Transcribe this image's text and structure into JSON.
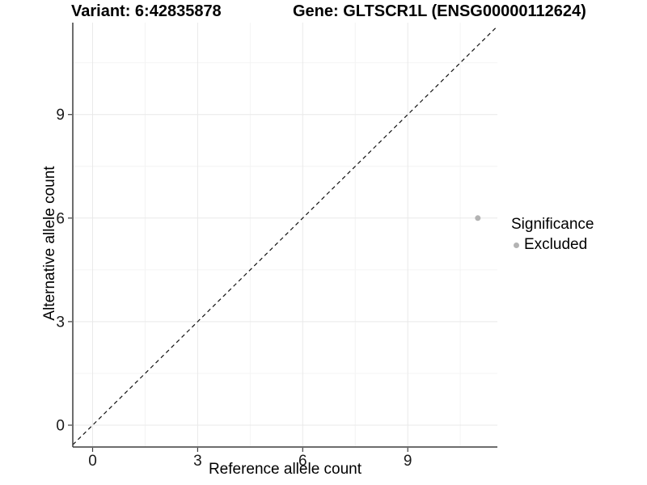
{
  "chart_data": {
    "type": "scatter",
    "title_left": "Variant: 6:42835878",
    "title_right": "Gene: GLTSCR1L (ENSG00000112624)",
    "xlabel": "Reference allele count",
    "ylabel": "Alternative allele count",
    "x_ticks": [
      0,
      3,
      6,
      9
    ],
    "y_ticks": [
      0,
      3,
      6,
      9
    ],
    "x_minor_ticks": [
      1.5,
      4.5,
      7.5,
      10.5
    ],
    "y_minor_ticks": [
      1.5,
      4.5,
      7.5,
      10.5
    ],
    "xlim": [
      -0.57,
      11.56
    ],
    "ylim": [
      -0.63,
      11.66
    ],
    "grid": true,
    "series": [
      {
        "name": "Excluded",
        "color": "#b3b3b3",
        "points": [
          {
            "x": 11,
            "y": 6
          }
        ]
      }
    ],
    "reference_line": {
      "kind": "identity y = x",
      "style": "dashed",
      "color": "#111111"
    },
    "legend": {
      "title": "Significance",
      "position": "right",
      "entries": [
        {
          "label": "Excluded",
          "color": "#b3b3b3"
        }
      ]
    },
    "colors": {
      "grid_major": "#e9e9e9",
      "grid_minor": "#f4f4f4",
      "axis": "#3d3d3d",
      "tick_text": "#1a1a1a"
    }
  }
}
